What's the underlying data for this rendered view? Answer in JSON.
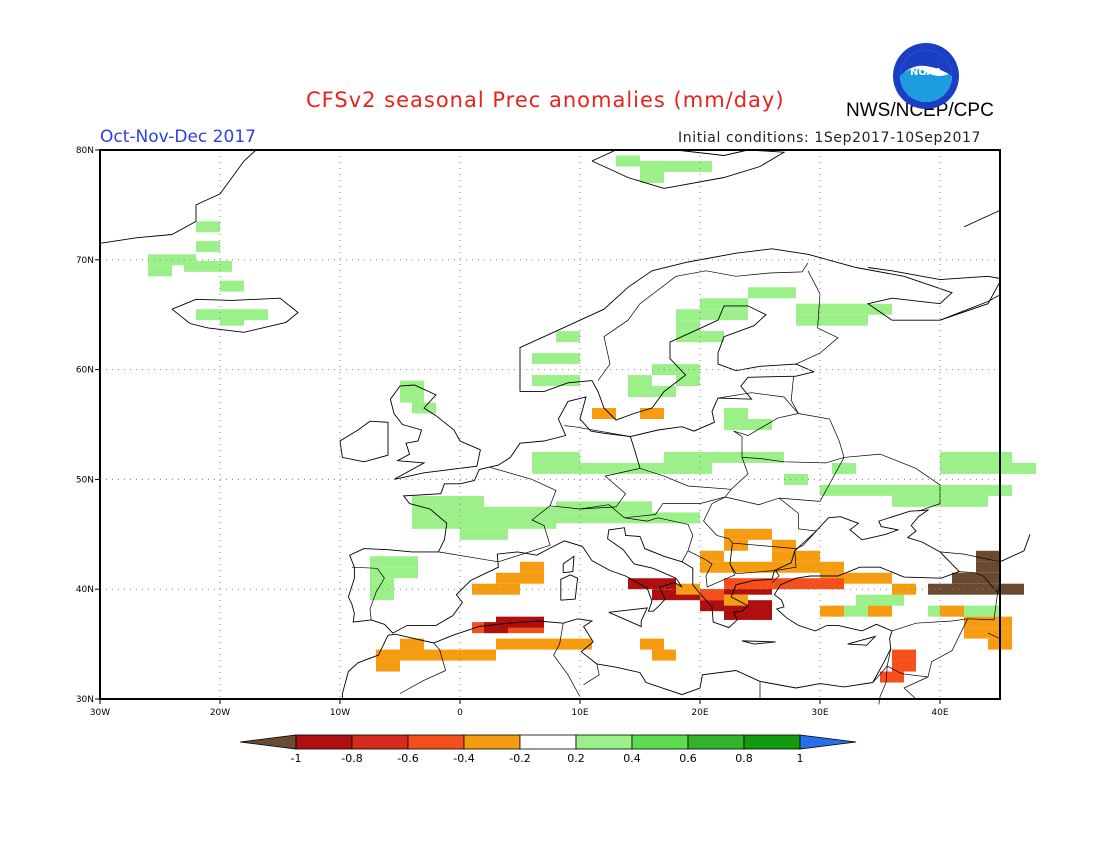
{
  "header": {
    "title": "CFSv2 seasonal Prec anomalies (mm/day)",
    "agency": "NWS/NCEP/CPC",
    "season": "Oct-Nov-Dec 2017",
    "initial_conditions": "Initial conditions: 1Sep2017-10Sep2017",
    "logo_text": "NOAA"
  },
  "map": {
    "lon_ticks": [
      "30W",
      "20W",
      "10W",
      "0",
      "10E",
      "20E",
      "30E",
      "40E"
    ],
    "lat_ticks": [
      "80N",
      "70N",
      "60N",
      "50N",
      "40N",
      "30N"
    ],
    "grid_lines": "dotted",
    "extent": {
      "lon_min": -30,
      "lon_max": 45,
      "lat_min": 30,
      "lat_max": 80
    }
  },
  "colorbar": {
    "labels": [
      "-1",
      "-0.8",
      "-0.6",
      "-0.4",
      "-0.2",
      "0.2",
      "0.4",
      "0.6",
      "0.8",
      "1"
    ],
    "colors": [
      "#6b4a32",
      "#b00f0f",
      "#d62a1a",
      "#f5501c",
      "#f59c10",
      "#ffffff",
      "#9cf08a",
      "#5cde50",
      "#30b42a",
      "#139b10",
      "#2a6ee8"
    ]
  },
  "anomaly_regions": [
    {
      "name": "greenland-east",
      "lon": -26,
      "lat": 70,
      "class": "0.2-0.4"
    },
    {
      "name": "greenland-east-2",
      "lon": -22,
      "lat": 73,
      "class": "0.2-0.4"
    },
    {
      "name": "iceland",
      "lon": -18,
      "lat": 65,
      "class": "0.2-0.4"
    },
    {
      "name": "svalbard",
      "lon": 15,
      "lat": 78.5,
      "class": "0.2-0.4"
    },
    {
      "name": "scotland",
      "lon": -5,
      "lat": 57.5,
      "class": "0.2-0.4"
    },
    {
      "name": "norway",
      "lon": 8,
      "lat": 61,
      "class": "0.2-0.4"
    },
    {
      "name": "sweden",
      "lon": 14,
      "lat": 59,
      "class": "0.2-0.4"
    },
    {
      "name": "finland",
      "lon": 24,
      "lat": 66,
      "class": "0.2-0.4"
    },
    {
      "name": "karelia",
      "lon": 28,
      "lat": 65.5,
      "class": "0.2-0.4"
    },
    {
      "name": "netherlands-germany",
      "lon": 6,
      "lat": 51,
      "class": "0.2-0.4"
    },
    {
      "name": "france",
      "lon": 2,
      "lat": 47,
      "class": "0.2-0.4"
    },
    {
      "name": "alps",
      "lon": 8,
      "lat": 46.5,
      "class": "0.2-0.4"
    },
    {
      "name": "poland",
      "lon": 17,
      "lat": 52,
      "class": "0.2-0.4"
    },
    {
      "name": "baltic",
      "lon": 22,
      "lat": 55,
      "class": "0.2-0.4"
    },
    {
      "name": "ukraine-east",
      "lon": 38,
      "lat": 49,
      "class": "0.2-0.4"
    },
    {
      "name": "russia-south",
      "lon": 42,
      "lat": 51,
      "class": "0.2-0.4"
    },
    {
      "name": "iberia-nw",
      "lon": -7.5,
      "lat": 41.5,
      "class": "0.2-0.4"
    },
    {
      "name": "turkey-central",
      "lon": 33,
      "lat": 39,
      "class": "0.2-0.4"
    },
    {
      "name": "denmark",
      "lon": 11,
      "lat": 56,
      "class": "-0.4--0.2"
    },
    {
      "name": "iberia-east",
      "lon": 1,
      "lat": 40,
      "class": "-0.4--0.2"
    },
    {
      "name": "morocco",
      "lon": -5,
      "lat": 34,
      "class": "-0.4--0.2"
    },
    {
      "name": "algeria",
      "lon": 3,
      "lat": 36.5,
      "class": "-0.6--0.4"
    },
    {
      "name": "algeria-coast",
      "lon": 3,
      "lat": 36.5,
      "class": "-0.8--0.6"
    },
    {
      "name": "italy-south",
      "lon": 16,
      "lat": 39.5,
      "class": "-0.8--0.6"
    },
    {
      "name": "greece",
      "lon": 22,
      "lat": 38.5,
      "class": "-0.8--0.6"
    },
    {
      "name": "balkans-east",
      "lon": 26,
      "lat": 43,
      "class": "-0.4--0.2"
    },
    {
      "name": "aegean",
      "lon": 24,
      "lat": 40.5,
      "class": "-0.6--0.4"
    },
    {
      "name": "caucasus",
      "lon": 43,
      "lat": 41,
      "class": "-1--0.8"
    },
    {
      "name": "levant",
      "lon": 36,
      "lat": 33,
      "class": "-0.6--0.4"
    },
    {
      "name": "mesopotamia",
      "lon": 44,
      "lat": 36,
      "class": "-0.4--0.2"
    }
  ]
}
